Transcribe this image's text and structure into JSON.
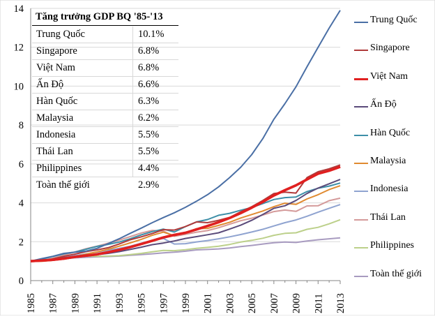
{
  "chart_data": {
    "type": "line",
    "x": [
      1985,
      1986,
      1987,
      1988,
      1989,
      1990,
      1991,
      1992,
      1993,
      1994,
      1995,
      1996,
      1997,
      1998,
      1999,
      2000,
      2001,
      2002,
      2003,
      2004,
      2005,
      2006,
      2007,
      2008,
      2009,
      2010,
      2011,
      2012,
      2013
    ],
    "x_tick_labels": [
      "1985",
      "1987",
      "1989",
      "1991",
      "1993",
      "1995",
      "1997",
      "1999",
      "2001",
      "2003",
      "2005",
      "2007",
      "2009",
      "2011",
      "2013"
    ],
    "y_tick_labels": [
      "0",
      "2",
      "4",
      "6",
      "8",
      "10",
      "12",
      "14"
    ],
    "ylim": [
      0,
      14
    ],
    "xlim": [
      1985,
      2013
    ],
    "grid": true,
    "legend_position": "right",
    "series": [
      {
        "name": "Trung Quốc",
        "color": "#4a6fa5",
        "values": [
          1,
          1.13,
          1.25,
          1.4,
          1.46,
          1.52,
          1.66,
          1.9,
          2.15,
          2.43,
          2.7,
          2.98,
          3.24,
          3.49,
          3.77,
          4.08,
          4.42,
          4.82,
          5.3,
          5.83,
          6.48,
          7.3,
          8.3,
          9.1,
          9.97,
          11.0,
          12.0,
          12.98,
          13.9
        ]
      },
      {
        "name": "Singapore",
        "color": "#b03a3a",
        "values": [
          1,
          1.02,
          1.12,
          1.25,
          1.36,
          1.49,
          1.58,
          1.69,
          1.88,
          2.1,
          2.25,
          2.42,
          2.62,
          2.6,
          2.78,
          3.02,
          2.98,
          3.1,
          3.25,
          3.54,
          3.8,
          4.12,
          4.48,
          4.55,
          4.5,
          5.3,
          5.6,
          5.75,
          5.95
        ]
      },
      {
        "name": "Việt Nam",
        "color": "#e02020",
        "values": [
          1,
          1.03,
          1.07,
          1.13,
          1.22,
          1.28,
          1.35,
          1.46,
          1.58,
          1.72,
          1.88,
          2.05,
          2.22,
          2.35,
          2.46,
          2.63,
          2.81,
          3.0,
          3.22,
          3.47,
          3.75,
          4.05,
          4.38,
          4.65,
          4.9,
          5.2,
          5.5,
          5.65,
          5.85
        ]
      },
      {
        "name": "Ấn Độ",
        "color": "#5a4a7a",
        "values": [
          1,
          1.04,
          1.08,
          1.18,
          1.25,
          1.32,
          1.33,
          1.4,
          1.49,
          1.6,
          1.72,
          1.85,
          1.93,
          2.04,
          2.17,
          2.26,
          2.36,
          2.46,
          2.65,
          2.85,
          3.1,
          3.4,
          3.72,
          3.85,
          4.12,
          4.48,
          4.76,
          4.98,
          5.2
        ]
      },
      {
        "name": "Hàn Quốc",
        "color": "#3d8fa8",
        "values": [
          1,
          1.11,
          1.24,
          1.38,
          1.47,
          1.61,
          1.76,
          1.86,
          1.98,
          2.15,
          2.35,
          2.52,
          2.65,
          2.5,
          2.78,
          3.02,
          3.14,
          3.36,
          3.46,
          3.62,
          3.76,
          3.96,
          4.17,
          4.27,
          4.3,
          4.58,
          4.75,
          4.86,
          5.02
        ]
      },
      {
        "name": "Malaysia",
        "color": "#e08a30",
        "values": [
          1,
          0.99,
          1.04,
          1.14,
          1.24,
          1.36,
          1.48,
          1.61,
          1.77,
          1.94,
          2.12,
          2.33,
          2.49,
          2.31,
          2.45,
          2.67,
          2.69,
          2.84,
          3.0,
          3.22,
          3.4,
          3.58,
          3.8,
          3.98,
          3.92,
          4.2,
          4.42,
          4.68,
          4.88
        ]
      },
      {
        "name": "Indonesia",
        "color": "#8fa3d0",
        "values": [
          1,
          1.06,
          1.11,
          1.18,
          1.28,
          1.37,
          1.46,
          1.56,
          1.66,
          1.77,
          1.92,
          2.07,
          2.17,
          1.88,
          1.9,
          1.99,
          2.06,
          2.15,
          2.25,
          2.37,
          2.5,
          2.64,
          2.81,
          2.98,
          3.12,
          3.31,
          3.52,
          3.72,
          3.91
        ]
      },
      {
        "name": "Thái Lan",
        "color": "#d49a9a",
        "values": [
          1,
          1.05,
          1.15,
          1.31,
          1.47,
          1.64,
          1.77,
          1.92,
          2.08,
          2.26,
          2.45,
          2.58,
          2.55,
          2.28,
          2.38,
          2.49,
          2.57,
          2.72,
          2.9,
          3.08,
          3.21,
          3.37,
          3.55,
          3.63,
          3.56,
          3.84,
          3.85,
          4.11,
          4.24
        ]
      },
      {
        "name": "Philippines",
        "color": "#bcd08a",
        "values": [
          1,
          1.03,
          1.08,
          1.15,
          1.22,
          1.26,
          1.25,
          1.26,
          1.28,
          1.34,
          1.4,
          1.48,
          1.55,
          1.54,
          1.59,
          1.66,
          1.71,
          1.77,
          1.86,
          1.98,
          2.07,
          2.18,
          2.33,
          2.43,
          2.46,
          2.64,
          2.74,
          2.92,
          3.13
        ]
      },
      {
        "name": "Toàn thế giới",
        "color": "#a89bc0",
        "values": [
          1,
          1.04,
          1.08,
          1.13,
          1.17,
          1.2,
          1.22,
          1.24,
          1.26,
          1.3,
          1.34,
          1.38,
          1.43,
          1.46,
          1.51,
          1.58,
          1.6,
          1.63,
          1.68,
          1.75,
          1.81,
          1.88,
          1.95,
          1.98,
          1.96,
          2.04,
          2.1,
          2.15,
          2.2
        ]
      }
    ]
  },
  "table": {
    "title": "Tăng trưởng GDP BQ '85-'13",
    "rows": [
      {
        "name": "Trung Quốc",
        "value": "10.1%"
      },
      {
        "name": "Singapore",
        "value": "6.8%"
      },
      {
        "name": "Việt Nam",
        "value": "6.8%"
      },
      {
        "name": "Ấn Độ",
        "value": "6.6%"
      },
      {
        "name": "Hàn Quốc",
        "value": "6.3%"
      },
      {
        "name": "Malaysia",
        "value": "6.2%"
      },
      {
        "name": "Indonesia",
        "value": "5.5%"
      },
      {
        "name": "Thái Lan",
        "value": "5.5%"
      },
      {
        "name": "Philippines",
        "value": "4.4%"
      },
      {
        "name": "Toàn thế giới",
        "value": "2.9%"
      }
    ]
  }
}
